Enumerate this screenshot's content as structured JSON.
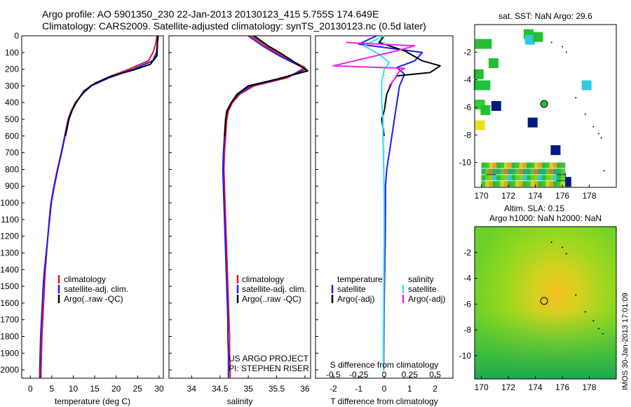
{
  "header": {
    "line1": "Argo profile: AO 5901350_230 22-Jan-2013 20130123_415 5.755S 174.649E",
    "line2": "Climatology: CARS2009. Satellite-adjusted climatology: synTS_20130123.nc (0.5d later)"
  },
  "project": {
    "line1": "US ARGO PROJECT",
    "line2": "PI: STEPHEN RISER"
  },
  "timestamp": "IMOS 30-Jan-2013 17:01:09",
  "colors": {
    "climatology": "#e8141e",
    "satellite": "#1a1aff",
    "argo": "#000000",
    "sal_satellite": "#33e0f0",
    "sal_argo": "#ee22ee"
  },
  "chart_data": [
    {
      "type": "line",
      "id": "temperature",
      "xlabel": "temperature (deg C)",
      "xlim": [
        -2,
        31
      ],
      "xticks": [
        0,
        5,
        10,
        15,
        20,
        25,
        30
      ],
      "ylim": [
        0,
        2050
      ],
      "yticks": [
        0,
        100,
        200,
        300,
        400,
        500,
        600,
        700,
        800,
        900,
        1000,
        1100,
        1200,
        1300,
        1400,
        1500,
        1600,
        1700,
        1800,
        1900,
        2000
      ],
      "legend": [
        "climatology",
        "satellite-adj. clim.",
        "Argo(..raw -QC)"
      ],
      "series": [
        {
          "name": "climatology",
          "color": "#e8141e",
          "points": [
            [
              29.5,
              0
            ],
            [
              29.2,
              50
            ],
            [
              28.6,
              100
            ],
            [
              27.5,
              150
            ],
            [
              23,
              200
            ],
            [
              18,
              250
            ],
            [
              14,
              300
            ],
            [
              12,
              350
            ],
            [
              10.5,
              400
            ],
            [
              9.5,
              450
            ],
            [
              8.8,
              500
            ],
            [
              8,
              600
            ],
            [
              7.2,
              700
            ],
            [
              6.3,
              800
            ],
            [
              5.5,
              900
            ],
            [
              4.8,
              1000
            ],
            [
              4.4,
              1100
            ],
            [
              4.1,
              1200
            ],
            [
              3.8,
              1300
            ],
            [
              3.5,
              1400
            ],
            [
              3.3,
              1500
            ],
            [
              3.1,
              1600
            ],
            [
              2.9,
              1700
            ],
            [
              2.7,
              1800
            ],
            [
              2.6,
              1900
            ],
            [
              2.5,
              2000
            ],
            [
              2.5,
              2050
            ]
          ]
        },
        {
          "name": "satellite-adj. clim.",
          "color": "#1a1aff",
          "points": [
            [
              29.8,
              0
            ],
            [
              29.6,
              50
            ],
            [
              29.4,
              100
            ],
            [
              28.5,
              150
            ],
            [
              24,
              200
            ],
            [
              18.5,
              250
            ],
            [
              14.2,
              300
            ],
            [
              12.1,
              350
            ],
            [
              10.6,
              400
            ],
            [
              9.6,
              450
            ],
            [
              8.9,
              500
            ],
            [
              8.1,
              600
            ],
            [
              7.3,
              700
            ],
            [
              6.4,
              800
            ],
            [
              5.6,
              900
            ],
            [
              4.9,
              1000
            ],
            [
              4.5,
              1100
            ],
            [
              4.1,
              1200
            ],
            [
              3.7,
              1300
            ],
            [
              3.3,
              1400
            ],
            [
              3,
              1500
            ],
            [
              2.8,
              1600
            ],
            [
              2.6,
              1700
            ],
            [
              2.4,
              1800
            ],
            [
              2.3,
              1900
            ],
            [
              2.2,
              2000
            ],
            [
              2.2,
              2050
            ]
          ]
        },
        {
          "name": "Argo(..raw -QC)",
          "color": "#000000",
          "points": [
            [
              29.7,
              0
            ],
            [
              29.6,
              60
            ],
            [
              29.5,
              120
            ],
            [
              28,
              170
            ],
            [
              24,
              205
            ],
            [
              19,
              240
            ],
            [
              15,
              285
            ],
            [
              12.5,
              330
            ],
            [
              10.7,
              400
            ],
            [
              9.7,
              450
            ],
            [
              9,
              500
            ],
            [
              8.2,
              600
            ]
          ]
        }
      ]
    },
    {
      "type": "line",
      "id": "salinity",
      "xlabel": "salinity",
      "xlim": [
        33.6,
        36.1
      ],
      "xticks": [
        34,
        34.5,
        35,
        35.5,
        36
      ],
      "ylim": [
        0,
        2050
      ],
      "legend": [
        "climatology",
        "satellite-adj. clim.",
        "Argo(..raw -QC)"
      ],
      "series": [
        {
          "name": "climatology",
          "color": "#e8141e",
          "points": [
            [
              35.05,
              0
            ],
            [
              35.3,
              60
            ],
            [
              35.6,
              120
            ],
            [
              36.0,
              190
            ],
            [
              35.7,
              250
            ],
            [
              35.1,
              300
            ],
            [
              34.85,
              350
            ],
            [
              34.72,
              400
            ],
            [
              34.65,
              450
            ],
            [
              34.62,
              500
            ],
            [
              34.6,
              600
            ],
            [
              34.58,
              700
            ],
            [
              34.57,
              800
            ],
            [
              34.58,
              900
            ],
            [
              34.59,
              1000
            ],
            [
              34.6,
              1100
            ],
            [
              34.61,
              1200
            ],
            [
              34.62,
              1300
            ],
            [
              34.63,
              1400
            ],
            [
              34.64,
              1500
            ],
            [
              34.65,
              1600
            ],
            [
              34.66,
              1700
            ],
            [
              34.67,
              1800
            ],
            [
              34.67,
              1900
            ],
            [
              34.68,
              2000
            ],
            [
              34.68,
              2050
            ]
          ]
        },
        {
          "name": "satellite-adj. clim.",
          "color": "#1a1aff",
          "points": [
            [
              35.0,
              0
            ],
            [
              35.25,
              60
            ],
            [
              35.55,
              120
            ],
            [
              36.02,
              200
            ],
            [
              35.65,
              250
            ],
            [
              35.05,
              300
            ],
            [
              34.82,
              350
            ],
            [
              34.7,
              400
            ],
            [
              34.63,
              450
            ],
            [
              34.6,
              500
            ],
            [
              34.58,
              600
            ],
            [
              34.56,
              700
            ],
            [
              34.55,
              800
            ],
            [
              34.56,
              900
            ],
            [
              34.57,
              1000
            ],
            [
              34.58,
              1100
            ],
            [
              34.59,
              1200
            ],
            [
              34.6,
              1300
            ],
            [
              34.61,
              1400
            ],
            [
              34.62,
              1500
            ],
            [
              34.63,
              1600
            ],
            [
              34.64,
              1700
            ],
            [
              34.64,
              1800
            ],
            [
              34.65,
              1900
            ],
            [
              34.65,
              2000
            ],
            [
              34.65,
              2050
            ]
          ]
        },
        {
          "name": "Argo(..raw -QC)",
          "color": "#000000",
          "points": [
            [
              35.1,
              0
            ],
            [
              35.35,
              60
            ],
            [
              35.6,
              110
            ],
            [
              36.05,
              210
            ],
            [
              35.5,
              260
            ],
            [
              35.0,
              300
            ],
            [
              34.8,
              350
            ],
            [
              34.7,
              400
            ],
            [
              34.62,
              450
            ],
            [
              34.6,
              500
            ],
            [
              34.58,
              600
            ]
          ]
        }
      ]
    },
    {
      "type": "line",
      "id": "difference",
      "xlabel": "T difference from climatology",
      "xlabel_top": "S difference from climatology",
      "xlim": [
        -2.7,
        2.7
      ],
      "xticks": [
        -2,
        -1,
        0,
        1,
        2
      ],
      "xticks_top": [
        "-0.5",
        "-0.25",
        "0",
        "0.25",
        "0.5"
      ],
      "xticks_top_pos": [
        -2,
        -1,
        0,
        1,
        2
      ],
      "ylim": [
        0,
        2050
      ],
      "legend_left_title": "temperature",
      "legend_right_title": "salinity",
      "legend": [
        "satellite",
        "Argo(-adj)",
        "satellite",
        "Argo(-adj)"
      ],
      "series": [
        {
          "name": "T satellite",
          "color": "#1a1aff",
          "points": [
            [
              -0.3,
              0
            ],
            [
              -1,
              50
            ],
            [
              1.5,
              100
            ],
            [
              1.2,
              150
            ],
            [
              0.5,
              190
            ],
            [
              0.8,
              230
            ],
            [
              0.6,
              300
            ],
            [
              0.5,
              400
            ],
            [
              0.4,
              500
            ],
            [
              0.3,
              600
            ],
            [
              0.2,
              700
            ],
            [
              0.1,
              800
            ],
            [
              0.05,
              900
            ],
            [
              0.05,
              1000
            ],
            [
              0.04,
              1200
            ],
            [
              0.02,
              1400
            ],
            [
              0.0,
              1600
            ],
            [
              -0.01,
              1800
            ],
            [
              -0.02,
              2000
            ]
          ]
        },
        {
          "name": "T Argo(-adj)",
          "color": "#000000",
          "points": [
            [
              0,
              0
            ],
            [
              -0.2,
              40
            ],
            [
              0.8,
              90
            ],
            [
              1.5,
              150
            ],
            [
              2.2,
              180
            ],
            [
              1.8,
              220
            ],
            [
              0.5,
              240
            ],
            [
              0.3,
              280
            ],
            [
              0.1,
              350
            ],
            [
              0.0,
              450
            ],
            [
              -0.1,
              500
            ],
            [
              0.0,
              600
            ]
          ]
        },
        {
          "name": "S satellite",
          "color": "#33e0f0",
          "points": [
            [
              0,
              0
            ],
            [
              -0.8,
              60
            ],
            [
              -0.2,
              110
            ],
            [
              0.2,
              160
            ],
            [
              0,
              200
            ],
            [
              -0.1,
              280
            ],
            [
              -0.1,
              400
            ],
            [
              -0.05,
              500
            ],
            [
              -0.05,
              600
            ],
            [
              -0.02,
              800
            ],
            [
              0,
              1000
            ],
            [
              0,
              1200
            ],
            [
              -0.01,
              1400
            ],
            [
              -0.02,
              1600
            ],
            [
              -0.03,
              1800
            ],
            [
              -0.03,
              2000
            ]
          ]
        },
        {
          "name": "S Argo(-adj)",
          "color": "#ee22ee",
          "points": [
            [
              -1.5,
              40
            ],
            [
              1.2,
              60
            ],
            [
              0.5,
              90
            ],
            [
              -2,
              180
            ],
            [
              0.8,
              195
            ],
            [
              0.6,
              210
            ],
            [
              0.4,
              260
            ],
            [
              0.2,
              300
            ]
          ]
        }
      ]
    },
    {
      "type": "heatmap",
      "id": "sst",
      "title": "sat. SST: NaN Argo: 29.6",
      "xticks": [
        170,
        172,
        174,
        176,
        178
      ],
      "yticks": [
        -2,
        -4,
        -6,
        -8,
        -10
      ]
    },
    {
      "type": "heatmap",
      "id": "sla",
      "title_line1": "Altim. SLA: 0.15",
      "title_line2": "Argo h1000: NaN h2000: NaN",
      "xticks": [
        170,
        172,
        174,
        176,
        178
      ],
      "yticks": [
        -2,
        -4,
        -6,
        -8,
        -10
      ]
    }
  ]
}
